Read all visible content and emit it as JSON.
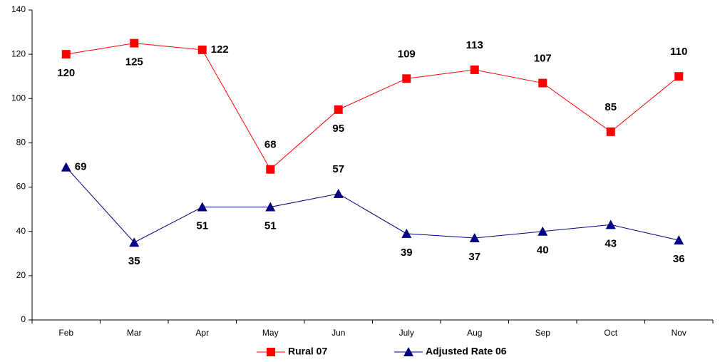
{
  "chart_data": {
    "type": "line",
    "categories": [
      "Feb",
      "Mar",
      "Apr",
      "May",
      "Jun",
      "July",
      "Aug",
      "Sep",
      "Oct",
      "Nov"
    ],
    "series": [
      {
        "name": "Rural 07",
        "color": "#ff0000",
        "marker": "square",
        "values": [
          120,
          125,
          122,
          68,
          95,
          109,
          113,
          107,
          85,
          110
        ]
      },
      {
        "name": "Adjusted Rate 06",
        "color": "#000080",
        "marker": "triangle",
        "values": [
          69,
          35,
          51,
          51,
          57,
          39,
          37,
          40,
          43,
          36
        ]
      }
    ],
    "ylim": [
      0,
      140
    ],
    "yticks": [
      0,
      20,
      40,
      60,
      80,
      100,
      120,
      140
    ],
    "grid": false,
    "legend": "bottom"
  }
}
